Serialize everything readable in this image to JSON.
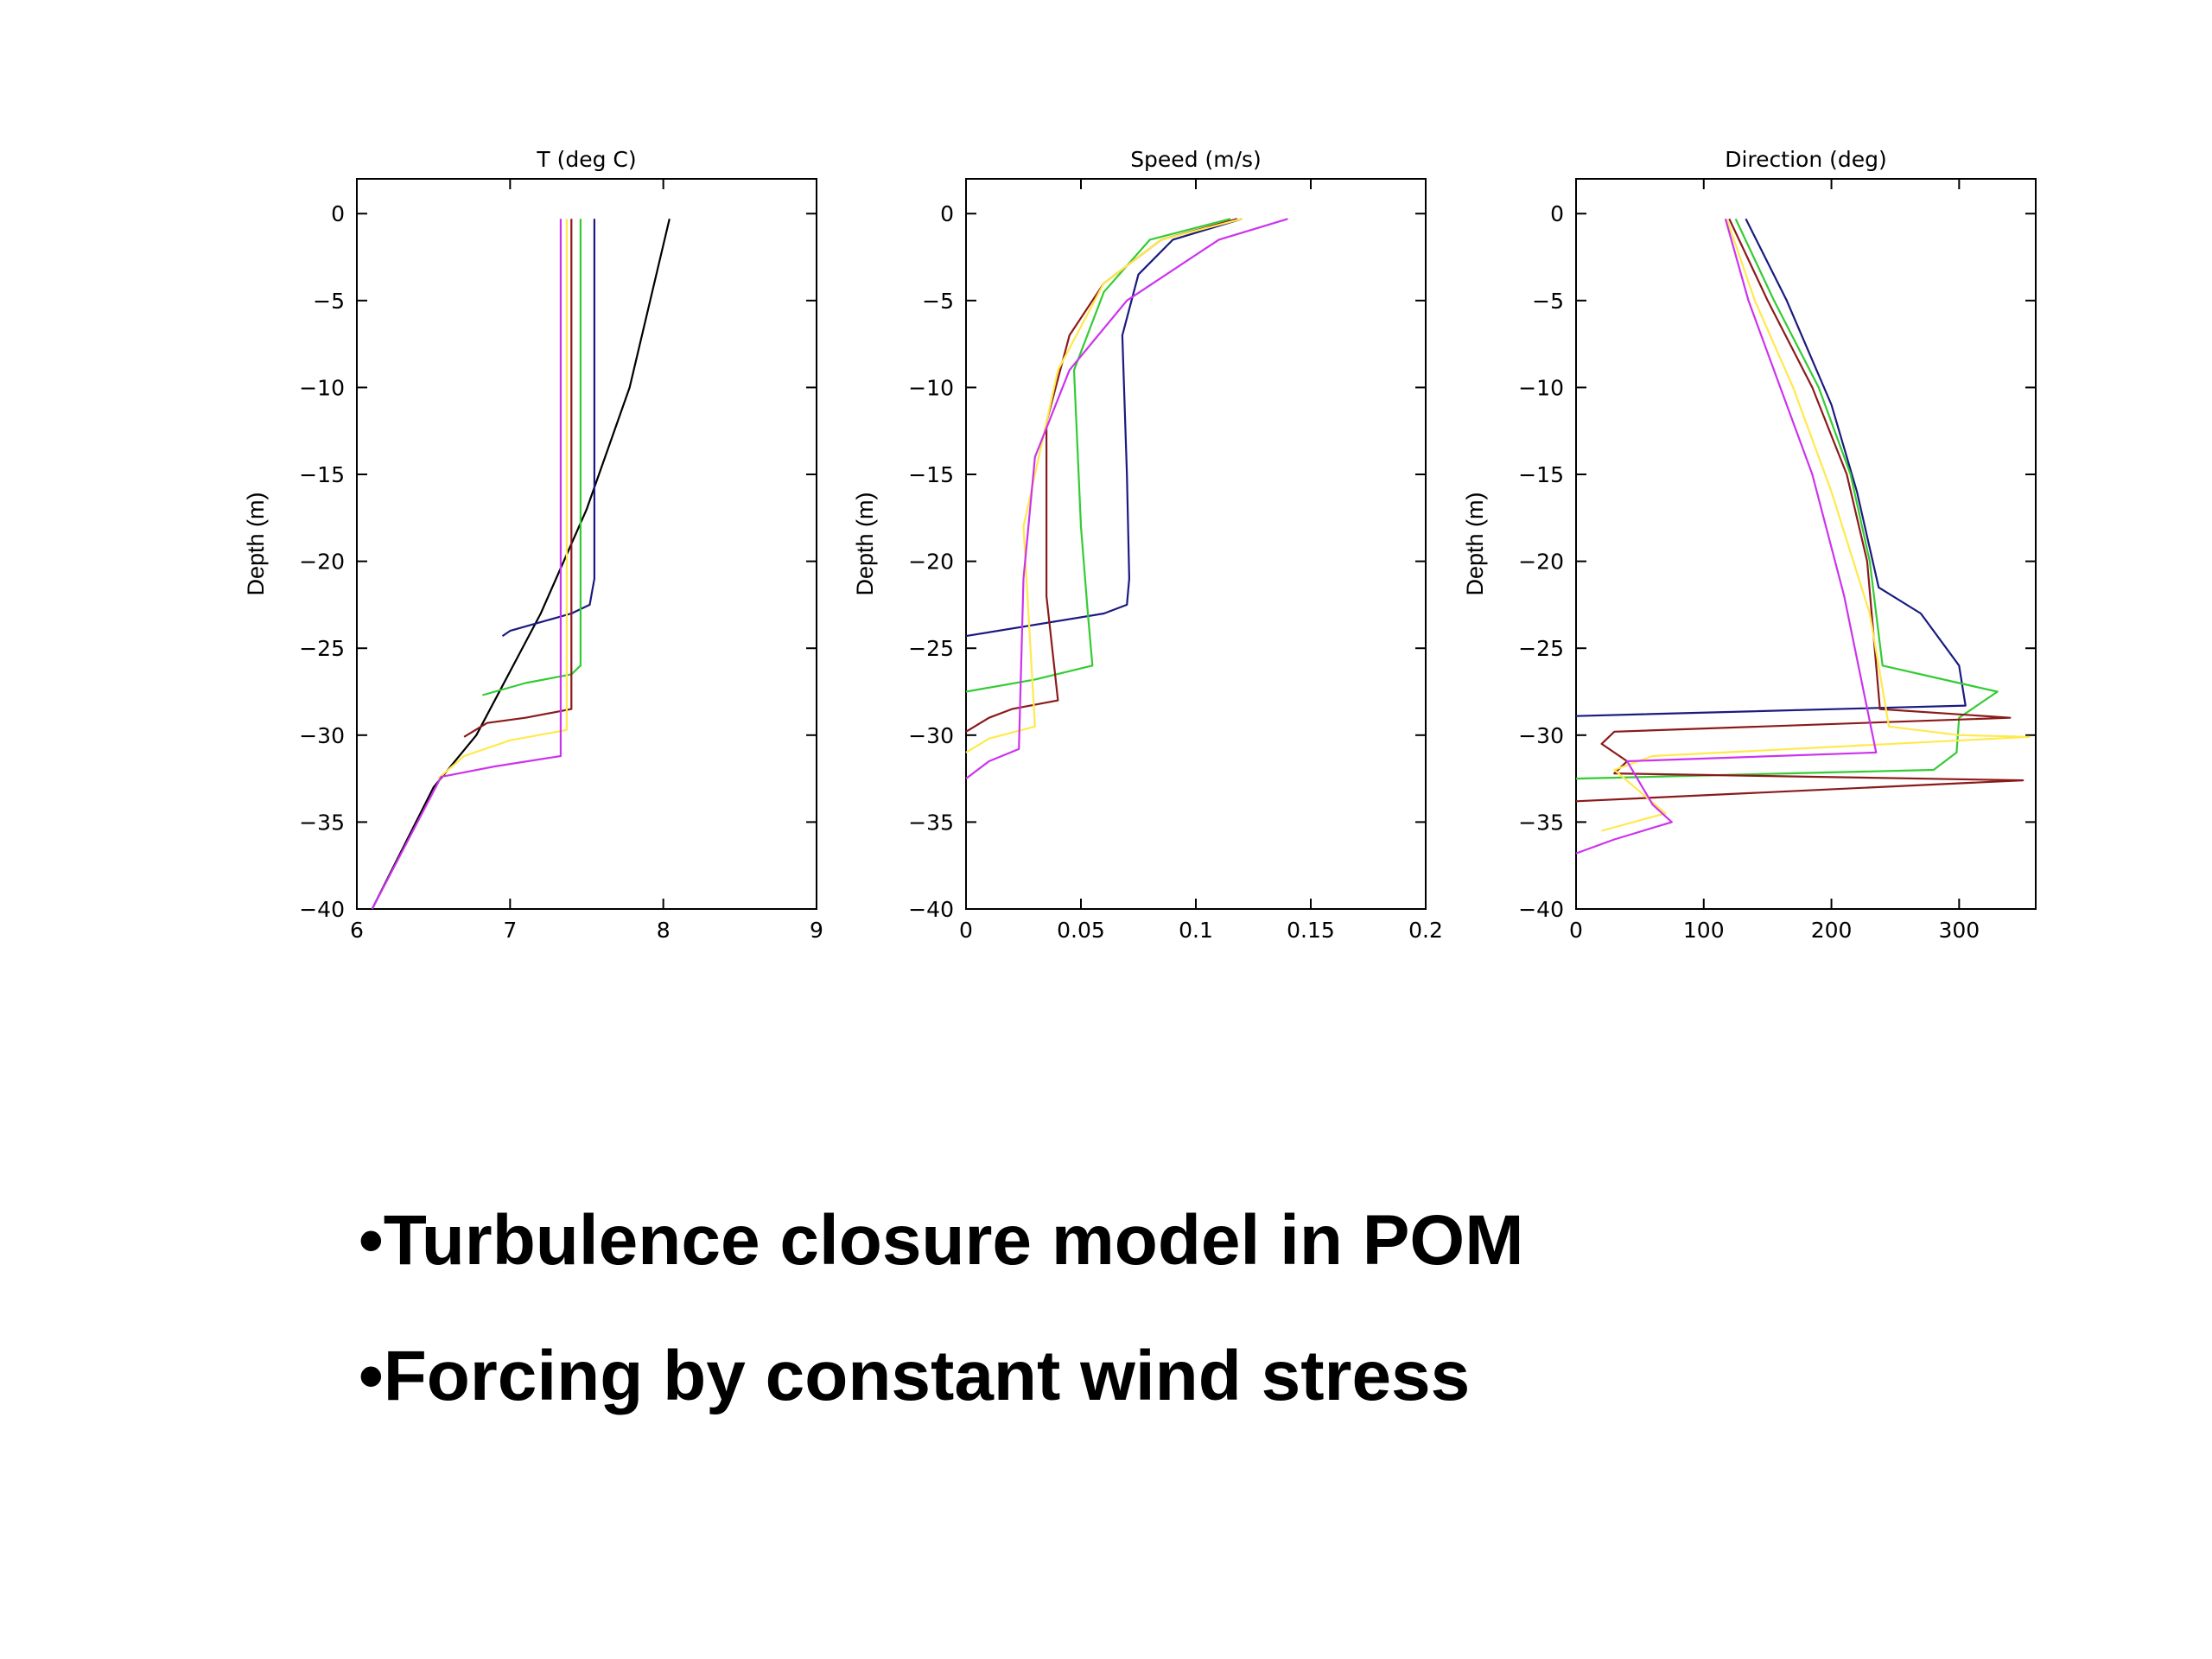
{
  "bullets": [
    "•Turbulence closure model in POM",
    "•Forcing by constant wind stress"
  ],
  "colors": {
    "black": "#000000",
    "blue": "#1a1a80",
    "green": "#33cc33",
    "red": "#8b1a1a",
    "yellow": "#ffe94d",
    "magenta": "#cc33ee"
  },
  "chart_data": [
    {
      "type": "line",
      "title": "T (deg C)",
      "ylabel": "Depth (m)",
      "xlabel": "",
      "xlim": [
        6,
        9
      ],
      "ylim": [
        -40,
        2
      ],
      "xticks": [
        6,
        7,
        8,
        9
      ],
      "xtick_labels": [
        "6",
        "7",
        "8",
        "9"
      ],
      "yticks": [
        0,
        -5,
        -10,
        -15,
        -20,
        -25,
        -30,
        -35,
        -40
      ],
      "ytick_labels": [
        "0",
        "−5",
        "−10",
        "−15",
        "−20",
        "−25",
        "−30",
        "−35",
        "−40"
      ],
      "series": [
        {
          "color": "black",
          "points": [
            [
              8.04,
              -0.3
            ],
            [
              7.78,
              -10
            ],
            [
              7.5,
              -17
            ],
            [
              7.2,
              -23
            ],
            [
              6.78,
              -30
            ],
            [
              6.5,
              -33
            ],
            [
              6.1,
              -40
            ]
          ]
        },
        {
          "color": "blue",
          "points": [
            [
              7.55,
              -0.3
            ],
            [
              7.55,
              -21
            ],
            [
              7.52,
              -22.5
            ],
            [
              7.4,
              -23
            ],
            [
              7.0,
              -24
            ],
            [
              6.95,
              -24.3
            ]
          ]
        },
        {
          "color": "green",
          "points": [
            [
              7.46,
              -0.3
            ],
            [
              7.46,
              -26
            ],
            [
              7.4,
              -26.5
            ],
            [
              7.1,
              -27
            ],
            [
              6.82,
              -27.7
            ]
          ]
        },
        {
          "color": "red",
          "points": [
            [
              7.4,
              -0.3
            ],
            [
              7.4,
              -28.5
            ],
            [
              7.1,
              -29
            ],
            [
              6.85,
              -29.3
            ],
            [
              6.7,
              -30.1
            ]
          ]
        },
        {
          "color": "yellow",
          "points": [
            [
              7.37,
              -0.3
            ],
            [
              7.37,
              -29.7
            ],
            [
              7.0,
              -30.3
            ],
            [
              6.7,
              -31.2
            ],
            [
              6.53,
              -32.5
            ]
          ]
        },
        {
          "color": "magenta",
          "points": [
            [
              7.33,
              -0.3
            ],
            [
              7.33,
              -31.2
            ],
            [
              6.9,
              -31.8
            ],
            [
              6.55,
              -32.4
            ],
            [
              6.1,
              -40
            ]
          ]
        }
      ]
    },
    {
      "type": "line",
      "title": "Speed (m/s)",
      "ylabel": "Depth (m)",
      "xlabel": "",
      "xlim": [
        0,
        0.2
      ],
      "ylim": [
        -40,
        2
      ],
      "xticks": [
        0,
        0.05,
        0.1,
        0.15,
        0.2
      ],
      "xtick_labels": [
        "0",
        "0.05",
        "0.1",
        "0.15",
        "0.2"
      ],
      "yticks": [
        0,
        -5,
        -10,
        -15,
        -20,
        -25,
        -30,
        -35,
        -40
      ],
      "ytick_labels": [
        "0",
        "−5",
        "−10",
        "−15",
        "−20",
        "−25",
        "−30",
        "−35",
        "−40"
      ],
      "series": [
        {
          "color": "blue",
          "points": [
            [
              0.12,
              -0.3
            ],
            [
              0.09,
              -1.5
            ],
            [
              0.075,
              -3.5
            ],
            [
              0.068,
              -7
            ],
            [
              0.07,
              -15
            ],
            [
              0.071,
              -21
            ],
            [
              0.07,
              -22.5
            ],
            [
              0.06,
              -23
            ],
            [
              0.0,
              -24.3
            ]
          ]
        },
        {
          "color": "green",
          "points": [
            [
              0.115,
              -0.3
            ],
            [
              0.08,
              -1.5
            ],
            [
              0.06,
              -4.5
            ],
            [
              0.047,
              -9
            ],
            [
              0.05,
              -18
            ],
            [
              0.053,
              -23
            ],
            [
              0.055,
              -26
            ],
            [
              0.03,
              -26.8
            ],
            [
              0.0,
              -27.5
            ]
          ]
        },
        {
          "color": "red",
          "points": [
            [
              0.118,
              -0.3
            ],
            [
              0.085,
              -1.5
            ],
            [
              0.06,
              -4
            ],
            [
              0.045,
              -7
            ],
            [
              0.035,
              -12
            ],
            [
              0.035,
              -22
            ],
            [
              0.04,
              -28
            ],
            [
              0.02,
              -28.5
            ],
            [
              0.01,
              -29
            ],
            [
              0.0,
              -29.8
            ]
          ]
        },
        {
          "color": "yellow",
          "points": [
            [
              0.12,
              -0.3
            ],
            [
              0.085,
              -1.5
            ],
            [
              0.06,
              -4
            ],
            [
              0.04,
              -9
            ],
            [
              0.025,
              -18
            ],
            [
              0.03,
              -29.5
            ],
            [
              0.01,
              -30.2
            ],
            [
              0.0,
              -31
            ]
          ]
        },
        {
          "color": "magenta",
          "points": [
            [
              0.14,
              -0.3
            ],
            [
              0.11,
              -1.5
            ],
            [
              0.07,
              -5
            ],
            [
              0.045,
              -9
            ],
            [
              0.03,
              -14
            ],
            [
              0.025,
              -21
            ],
            [
              0.023,
              -30.8
            ],
            [
              0.01,
              -31.5
            ],
            [
              0.0,
              -32.5
            ]
          ]
        }
      ]
    },
    {
      "type": "line",
      "title": "Direction (deg)",
      "ylabel": "Depth (m)",
      "xlabel": "",
      "xlim": [
        0,
        360
      ],
      "ylim": [
        -40,
        2
      ],
      "xticks": [
        0,
        100,
        200,
        300
      ],
      "xtick_labels": [
        "0",
        "100",
        "200",
        "300"
      ],
      "yticks": [
        0,
        -5,
        -10,
        -15,
        -20,
        -25,
        -30,
        -35,
        -40
      ],
      "ytick_labels": [
        "0",
        "−5",
        "−10",
        "−15",
        "−20",
        "−25",
        "−30",
        "−35",
        "−40"
      ],
      "series": [
        {
          "color": "blue",
          "points": [
            [
              133,
              -0.3
            ],
            [
              165,
              -5
            ],
            [
              200,
              -11
            ],
            [
              220,
              -16
            ],
            [
              237,
              -21.5
            ],
            [
              270,
              -23
            ],
            [
              300,
              -26
            ],
            [
              305,
              -28.3
            ],
            [
              0,
              -28.9
            ]
          ]
        },
        {
          "color": "green",
          "points": [
            [
              125,
              -0.3
            ],
            [
              155,
              -5
            ],
            [
              190,
              -10
            ],
            [
              215,
              -15
            ],
            [
              230,
              -20
            ],
            [
              240,
              -26
            ],
            [
              300,
              -27
            ],
            [
              330,
              -27.5
            ],
            [
              300,
              -29
            ],
            [
              298,
              -31
            ],
            [
              280,
              -32
            ],
            [
              0,
              -32.5
            ]
          ]
        },
        {
          "color": "red",
          "points": [
            [
              120,
              -0.3
            ],
            [
              150,
              -5
            ],
            [
              185,
              -10
            ],
            [
              212,
              -15
            ],
            [
              228,
              -20
            ],
            [
              238,
              -28.5
            ],
            [
              340,
              -29
            ],
            [
              30,
              -29.8
            ],
            [
              20,
              -30.5
            ],
            [
              40,
              -31.5
            ],
            [
              30,
              -32.2
            ],
            [
              350,
              -32.6
            ],
            [
              0,
              -33.8
            ]
          ]
        },
        {
          "color": "yellow",
          "points": [
            [
              118,
              -0.3
            ],
            [
              140,
              -5
            ],
            [
              170,
              -10
            ],
            [
              200,
              -16
            ],
            [
              230,
              -23
            ],
            [
              245,
              -29.5
            ],
            [
              300,
              -30
            ],
            [
              355,
              -30.1
            ],
            [
              60,
              -31.2
            ],
            [
              30,
              -32
            ],
            [
              70,
              -34.5
            ],
            [
              20,
              -35.5
            ]
          ]
        },
        {
          "color": "magenta",
          "points": [
            [
              117,
              -0.3
            ],
            [
              135,
              -5
            ],
            [
              160,
              -10
            ],
            [
              185,
              -15
            ],
            [
              210,
              -22
            ],
            [
              235,
              -31
            ],
            [
              40,
              -31.5
            ],
            [
              60,
              -34
            ],
            [
              75,
              -35
            ],
            [
              30,
              -36
            ],
            [
              0,
              -36.8
            ]
          ]
        }
      ]
    }
  ]
}
